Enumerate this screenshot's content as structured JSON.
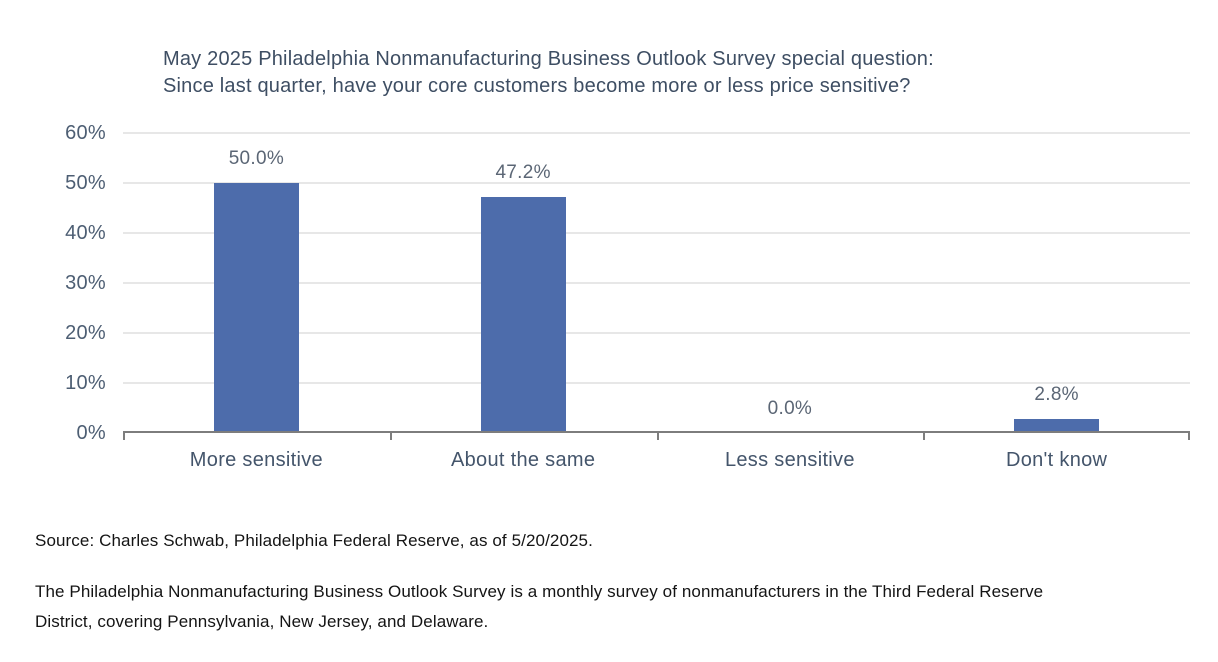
{
  "chart_data": {
    "type": "bar",
    "title": "May 2025 Philadelphia Nonmanufacturing Business Outlook Survey special question: Since last quarter, have your core customers become more or less price sensitive?",
    "title_lines": [
      "May 2025 Philadelphia Nonmanufacturing Business Outlook Survey special question:",
      "Since last quarter, have your core customers become more or less price sensitive?"
    ],
    "categories": [
      "More sensitive",
      "About the same",
      "Less sensitive",
      "Don't know"
    ],
    "values": [
      50.0,
      47.2,
      0.0,
      2.8
    ],
    "value_labels": [
      "50.0%",
      "47.2%",
      "0.0%",
      "2.8%"
    ],
    "xlabel": "",
    "ylabel": "",
    "ylim": [
      0,
      60
    ],
    "ytick_step": 10,
    "ytick_labels": [
      "0%",
      "10%",
      "20%",
      "30%",
      "40%",
      "50%",
      "60%"
    ],
    "grid": true,
    "legend": false
  },
  "colors": {
    "bar": "#4d6cab",
    "gridline": "#e7e7e7",
    "axis_line": "#7d7d7d",
    "title_text": "#3e4e63",
    "x_label_text": "#44556b",
    "y_label_text": "#4d5e73",
    "value_label_text": "#5b6675",
    "body_text": "#141414",
    "background": "#ffffff"
  },
  "notes": {
    "source": "Source: Charles Schwab, Philadelphia Federal Reserve, as of 5/20/2025.",
    "footnote": "The Philadelphia Nonmanufacturing Business Outlook Survey is a monthly survey of nonmanufacturers in the Third Federal Reserve District, covering Pennsylvania, New Jersey, and Delaware.",
    "footnote_lines": [
      "The Philadelphia Nonmanufacturing Business Outlook Survey is a monthly survey of nonmanufacturers in the Third Federal Reserve",
      "District, covering Pennsylvania, New Jersey, and Delaware."
    ]
  }
}
